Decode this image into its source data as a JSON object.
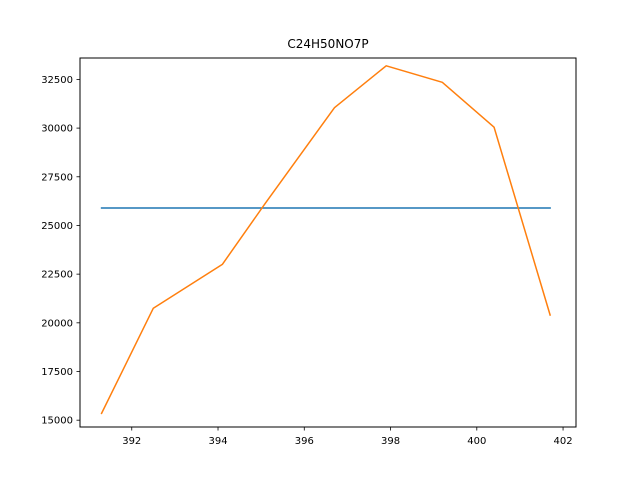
{
  "chart_data": {
    "type": "line",
    "title": "C24H50NO7P",
    "xlabel": "",
    "ylabel": "",
    "xlim": [
      390.8,
      402.3
    ],
    "ylim": [
      14650,
      33600
    ],
    "grid": false,
    "x_ticks": [
      392,
      394,
      396,
      398,
      400,
      402
    ],
    "y_ticks": [
      15000,
      17500,
      20000,
      22500,
      25000,
      27500,
      30000,
      32500
    ],
    "x_tick_labels": [
      "392",
      "394",
      "396",
      "398",
      "400",
      "402"
    ],
    "y_tick_labels": [
      "15000",
      "17500",
      "20000",
      "22500",
      "25000",
      "27500",
      "30000",
      "32500"
    ],
    "series": [
      {
        "color": "#1f77b4",
        "x": [
          391.3,
          401.7
        ],
        "y": [
          25900,
          25900
        ]
      },
      {
        "color": "#ff7f0e",
        "x": [
          391.3,
          392.5,
          394.1,
          395.1,
          396.7,
          397.9,
          399.2,
          400.4,
          401.7
        ],
        "y": [
          15350,
          20750,
          23000,
          26150,
          31050,
          33200,
          32350,
          30050,
          20400
        ]
      }
    ]
  }
}
